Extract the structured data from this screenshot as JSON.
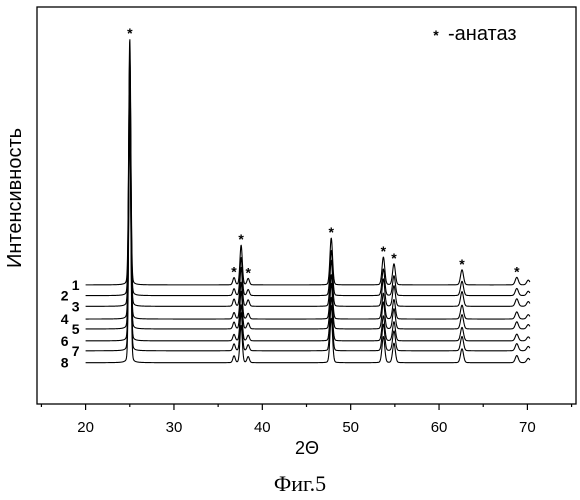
{
  "caption": "Фиг.5",
  "chart_data": {
    "type": "line",
    "xlabel": "2Θ",
    "ylabel": "Интенсивность",
    "xlim": [
      14.5,
      75.5
    ],
    "ylim": [
      0,
      100
    ],
    "xticks": [
      20,
      30,
      40,
      50,
      60,
      70
    ],
    "xticks_minor": [
      15,
      25,
      35,
      45,
      55,
      65,
      75
    ],
    "grid": false,
    "line_color": "#000000",
    "legend": {
      "position": "top-right",
      "symbol": "*",
      "label": "-анатаз"
    },
    "x_range": [
      20,
      70.3
    ],
    "peaks_2theta": [
      25.0,
      36.8,
      37.6,
      38.4,
      47.8,
      53.7,
      54.9,
      62.6,
      68.8,
      70.1
    ],
    "series": [
      {
        "name": "1",
        "baseline": 30.0,
        "peak_heights": [
          62.0,
          1.8,
          10.0,
          1.6,
          11.8,
          7.0,
          5.3,
          3.8,
          1.9,
          1.2
        ]
      },
      {
        "name": "2",
        "baseline": 27.3,
        "peak_heights": [
          61.0,
          1.7,
          9.6,
          1.5,
          11.4,
          6.7,
          5.0,
          3.6,
          1.8,
          1.1
        ]
      },
      {
        "name": "3",
        "baseline": 24.6,
        "peak_heights": [
          62.5,
          1.8,
          9.8,
          1.6,
          11.6,
          6.9,
          5.2,
          3.7,
          1.9,
          1.2
        ]
      },
      {
        "name": "4",
        "baseline": 21.4,
        "peak_heights": [
          60.5,
          1.6,
          9.3,
          1.4,
          11.2,
          6.5,
          4.9,
          3.5,
          1.8,
          1.1
        ]
      },
      {
        "name": "5",
        "baseline": 18.9,
        "peak_heights": [
          61.5,
          1.7,
          9.5,
          1.5,
          11.5,
          6.8,
          5.1,
          3.6,
          1.8,
          1.1
        ]
      },
      {
        "name": "6",
        "baseline": 15.9,
        "peak_heights": [
          60.0,
          1.6,
          9.1,
          1.4,
          11.0,
          6.3,
          4.8,
          3.4,
          1.7,
          1.0
        ]
      },
      {
        "name": "7",
        "baseline": 13.4,
        "peak_heights": [
          61.0,
          1.7,
          9.6,
          1.5,
          11.4,
          6.7,
          5.0,
          3.6,
          1.8,
          1.1
        ]
      },
      {
        "name": "8",
        "baseline": 10.4,
        "peak_heights": [
          60.5,
          1.7,
          9.4,
          1.5,
          11.2,
          6.6,
          4.9,
          3.5,
          1.8,
          1.1
        ]
      }
    ],
    "annotations": [
      {
        "text": "*",
        "x": 25.0
      },
      {
        "text": "*",
        "x": 36.8
      },
      {
        "text": "*",
        "x": 37.6
      },
      {
        "text": "*",
        "x": 38.4
      },
      {
        "text": "*",
        "x": 47.8
      },
      {
        "text": "*",
        "x": 53.7
      },
      {
        "text": "*",
        "x": 54.9
      },
      {
        "text": "*",
        "x": 62.6
      },
      {
        "text": "*",
        "x": 68.8
      }
    ]
  }
}
